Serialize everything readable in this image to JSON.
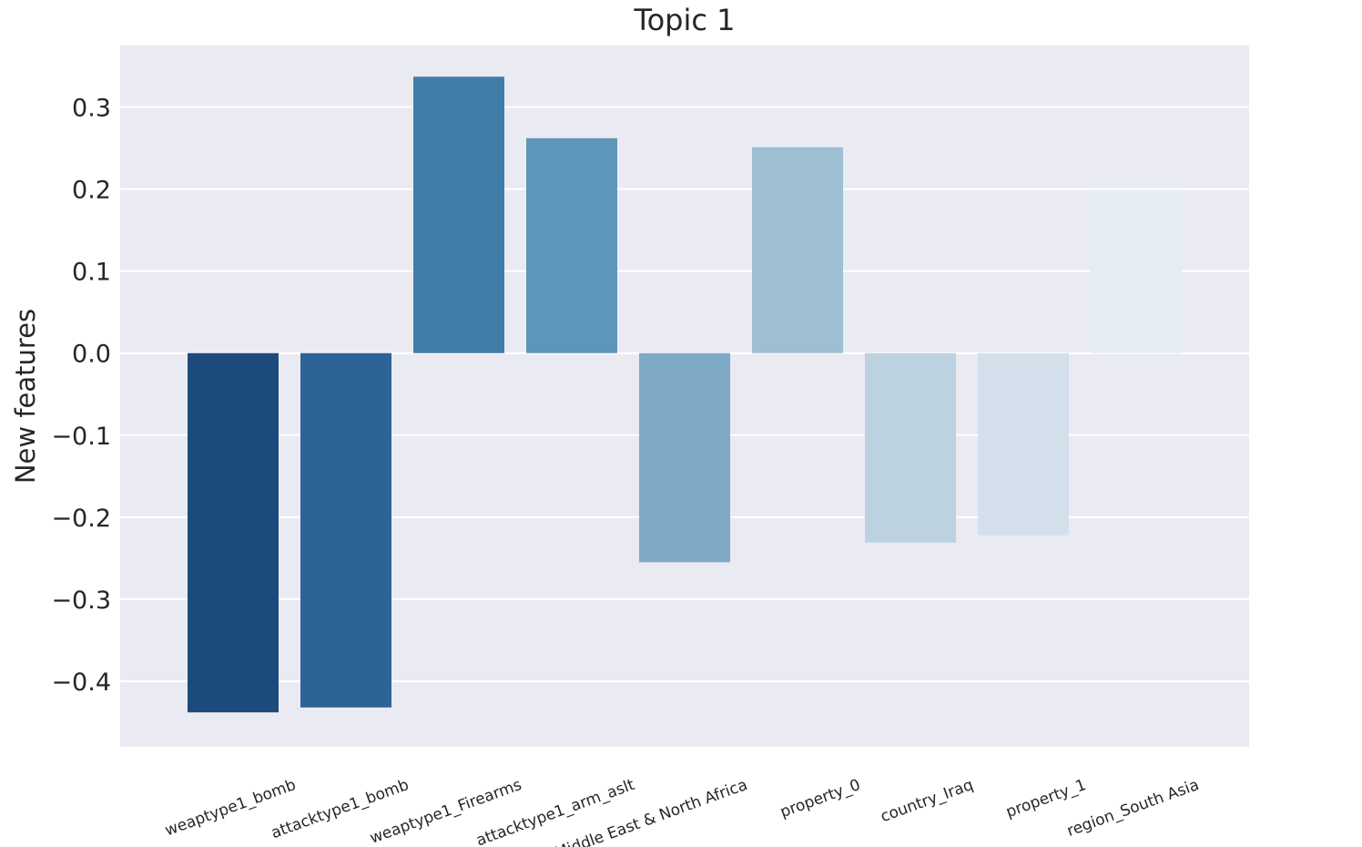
{
  "chart_data": {
    "type": "bar",
    "title": "Topic 1",
    "xlabel": "",
    "ylabel": "New features",
    "categories": [
      "weaptype1_bomb",
      "attacktype1_bomb",
      "weaptype1_Firearms",
      "attacktype1_arm_aslt",
      "region_Middle East & North Africa",
      "property_0",
      "country_Iraq",
      "property_1",
      "region_South Asia"
    ],
    "values": [
      -0.438,
      -0.432,
      0.337,
      0.262,
      -0.255,
      0.251,
      -0.231,
      -0.222,
      0.199
    ],
    "colors": [
      "#1c4b7b",
      "#2d6396",
      "#407da9",
      "#5d96b9",
      "#7eaac8",
      "#9ebfd2",
      "#bdd2e1",
      "#d3e0ec",
      "#e6ecf4"
    ],
    "ylim": [
      -0.48,
      0.375
    ],
    "yticks": [
      -0.4,
      -0.3,
      -0.2,
      -0.1,
      0.0,
      0.1,
      0.2,
      0.3
    ],
    "ytick_labels": [
      "−0.4",
      "−0.3",
      "−0.2",
      "−0.1",
      "0.0",
      "0.1",
      "0.2",
      "0.3"
    ],
    "grid": true,
    "xtick_rotation": 20,
    "background_color": "#eaeaf2",
    "grid_color": "#ffffff"
  }
}
